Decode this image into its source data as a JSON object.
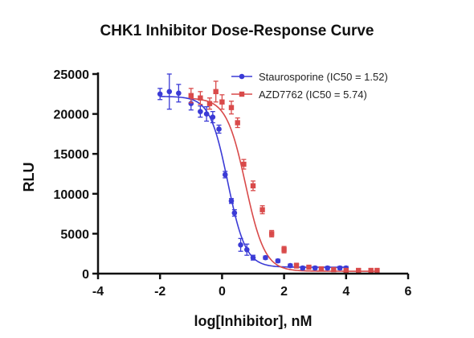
{
  "chart_data": {
    "type": "scatter",
    "title": "CHK1 Inhibitor Dose-Response Curve",
    "xlabel": "log[Inhibitor], nM",
    "ylabel": "RLU",
    "xlim": [
      -4,
      6
    ],
    "ylim": [
      0,
      25000
    ],
    "xticks": [
      -4,
      -2,
      0,
      2,
      4,
      6
    ],
    "yticks": [
      0,
      5000,
      10000,
      15000,
      20000,
      25000
    ],
    "grid": false,
    "legend_position": "top-right",
    "series": [
      {
        "name": "Staurosporine (IC50 = 1.52)",
        "color": "#3b3bd6",
        "marker": "circle",
        "x": [
          -2.0,
          -1.7,
          -1.4,
          -1.0,
          -0.7,
          -0.5,
          -0.3,
          -0.1,
          0.1,
          0.3,
          0.4,
          0.6,
          0.8,
          1.0,
          1.4,
          1.8,
          2.2,
          2.6,
          3.0,
          3.4,
          3.8,
          4.0
        ],
        "y": [
          22500,
          22800,
          22600,
          21300,
          20300,
          20000,
          19600,
          18100,
          12400,
          9100,
          7600,
          3600,
          3000,
          2000,
          2000,
          1600,
          1000,
          700,
          700,
          700,
          700,
          700
        ],
        "err": [
          700,
          2200,
          1100,
          800,
          700,
          900,
          700,
          500,
          400,
          300,
          400,
          800,
          700,
          300,
          200,
          200,
          200,
          200,
          200,
          200,
          200,
          200
        ],
        "curve": {
          "top": 22200,
          "bottom": 800,
          "log_ic50": 0.182,
          "hill": 1.5
        }
      },
      {
        "name": "AZD7762 (IC50 = 5.74)",
        "color": "#d94a4a",
        "marker": "square",
        "x": [
          -1.0,
          -0.7,
          -0.4,
          -0.2,
          0.0,
          0.3,
          0.5,
          0.7,
          1.0,
          1.3,
          1.6,
          2.0,
          2.4,
          2.8,
          3.2,
          3.6,
          4.0,
          4.4,
          4.8,
          5.0
        ],
        "y": [
          22300,
          22000,
          21300,
          22800,
          21500,
          20800,
          18900,
          13700,
          11000,
          8000,
          5000,
          3000,
          1000,
          800,
          600,
          500,
          400,
          400,
          400,
          400
        ],
        "err": [
          900,
          800,
          700,
          1300,
          900,
          800,
          600,
          600,
          600,
          500,
          400,
          400,
          300,
          200,
          200,
          200,
          200,
          200,
          200,
          200
        ],
        "curve": {
          "top": 22000,
          "bottom": 300,
          "log_ic50": 0.759,
          "hill": 1.4
        }
      }
    ]
  }
}
